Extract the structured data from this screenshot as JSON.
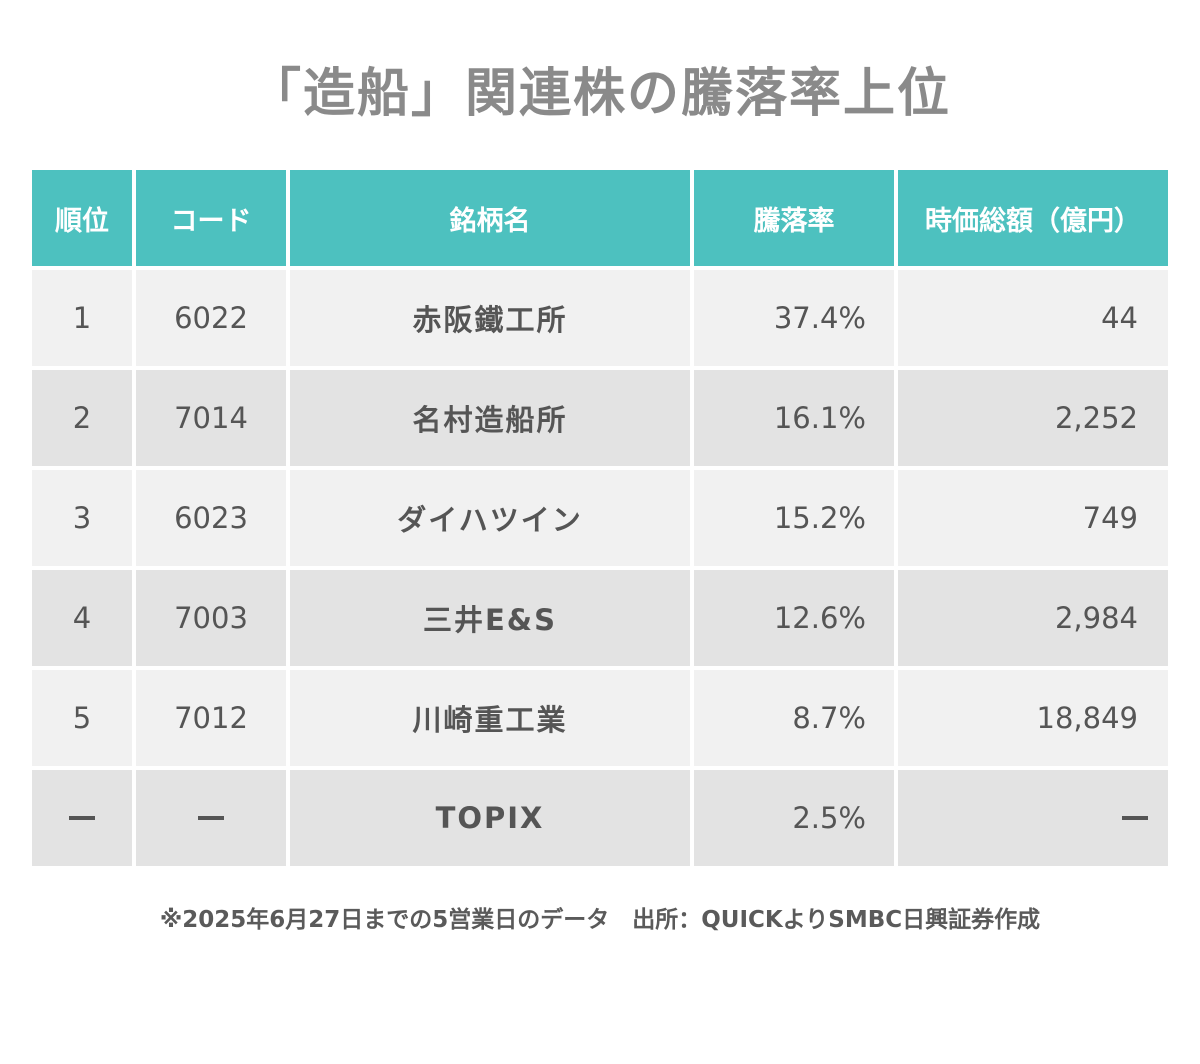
{
  "title": "「造船」関連株の騰落率上位",
  "table": {
    "headers": [
      "順位",
      "コード",
      "銘柄名",
      "騰落率",
      "時価総額（億円）"
    ],
    "rows": [
      {
        "rank": "1",
        "code": "6022",
        "name": "赤阪鐵工所",
        "change": "37.4%",
        "market_cap": "44"
      },
      {
        "rank": "2",
        "code": "7014",
        "name": "名村造船所",
        "change": "16.1%",
        "market_cap": "2,252"
      },
      {
        "rank": "3",
        "code": "6023",
        "name": "ダイハツイン",
        "change": "15.2%",
        "market_cap": "749"
      },
      {
        "rank": "4",
        "code": "7003",
        "name": "三井E&S",
        "change": "12.6%",
        "market_cap": "2,984"
      },
      {
        "rank": "5",
        "code": "7012",
        "name": "川崎重工業",
        "change": "8.7%",
        "market_cap": "18,849"
      },
      {
        "rank": "—",
        "code": "—",
        "name": "TOPIX",
        "change": "2.5%",
        "market_cap": "—"
      }
    ]
  },
  "footnote": "※2025年6月27日までの5営業日のデータ　出所：QUICKよりSMBC日興証券作成",
  "colors": {
    "header_bg": "#4dc1bf",
    "header_text": "#ffffff",
    "row_light": "#f1f1f1",
    "row_dark": "#e3e3e3",
    "title_text": "#8a8a8a",
    "body_text": "#555555"
  }
}
